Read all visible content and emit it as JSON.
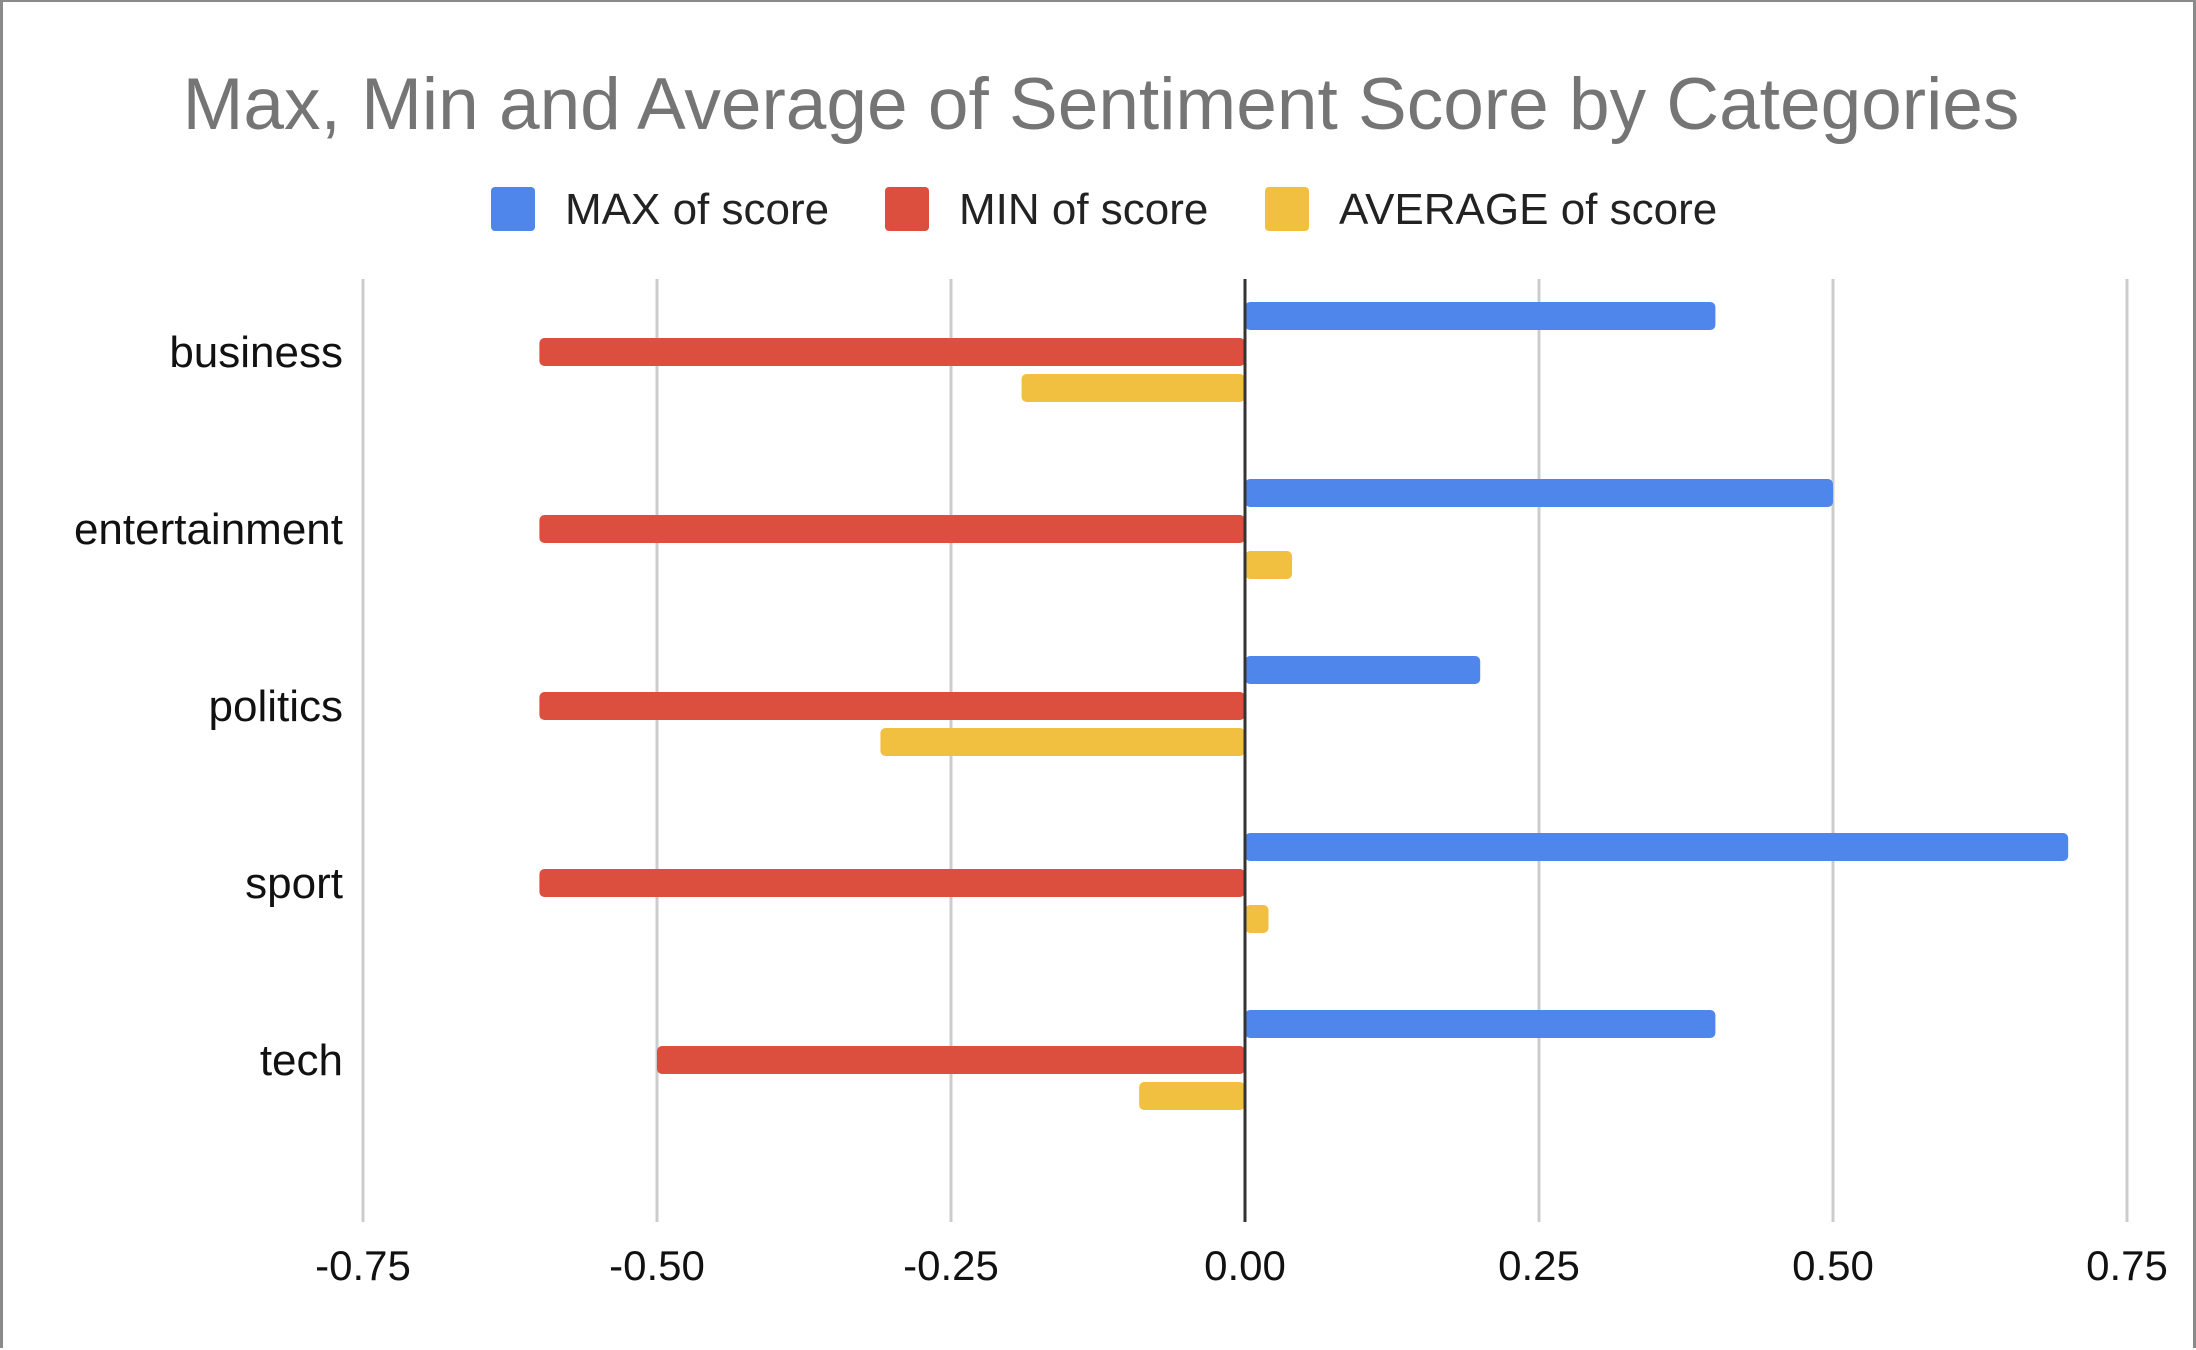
{
  "chart_data": {
    "type": "bar",
    "orientation": "horizontal",
    "title": "Max, Min and Average of Sentiment Score by Categories",
    "xlabel": "",
    "ylabel": "",
    "categories": [
      "business",
      "entertainment",
      "politics",
      "sport",
      "tech"
    ],
    "series": [
      {
        "name": "MAX of score",
        "color": "#4f86ec",
        "values": [
          0.4,
          0.5,
          0.2,
          0.7,
          0.4
        ]
      },
      {
        "name": "MIN of score",
        "color": "#dc4f3f",
        "values": [
          -0.6,
          -0.6,
          -0.6,
          -0.6,
          -0.5
        ]
      },
      {
        "name": "AVERAGE of score",
        "color": "#f2c041",
        "values": [
          -0.19,
          0.04,
          -0.31,
          0.02,
          -0.09
        ]
      }
    ],
    "xlim": [
      -0.75,
      0.75
    ],
    "x_ticks": [
      "-0.75",
      "-0.50",
      "-0.25",
      "0.00",
      "0.25",
      "0.50",
      "0.75"
    ],
    "grid": "vertical",
    "legend_position": "top-center"
  }
}
